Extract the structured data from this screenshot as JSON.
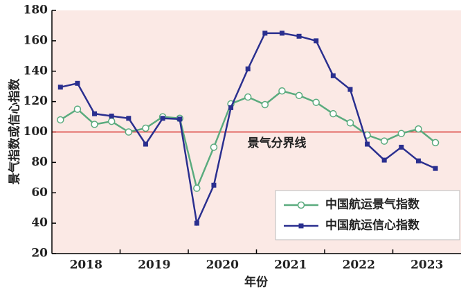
{
  "chart_data": {
    "type": "line",
    "y_label": "景气指数或信心指数",
    "x_label": "年份",
    "annotation": "景气分界线",
    "reference_line": 100,
    "reference_color": "#d9302c",
    "categories": [
      null,
      null,
      null,
      null,
      null,
      null,
      null,
      null,
      null,
      null,
      null,
      null,
      null,
      null,
      null,
      null,
      null,
      null,
      null,
      null,
      null,
      null,
      null
    ],
    "year_labels": [
      "2018",
      "2019",
      "2020",
      "2021",
      "2022",
      "2023"
    ],
    "series": [
      {
        "name": "中国航运景气指数",
        "color": "#5aab7e",
        "marker": "circle",
        "values": [
          108,
          115,
          105,
          107,
          100,
          102.5,
          110,
          109,
          63,
          90,
          118.5,
          123,
          118,
          127,
          124,
          119.5,
          112,
          106,
          98,
          94,
          99,
          102,
          93
        ]
      },
      {
        "name": "中国航运信心指数",
        "color": "#2a2f8f",
        "marker": "square",
        "values": [
          129.5,
          132,
          112,
          110.5,
          109,
          92,
          109,
          108.5,
          40,
          65,
          116,
          141.5,
          165,
          165,
          163,
          160,
          137,
          128,
          92,
          81.5,
          90,
          81,
          76
        ]
      }
    ],
    "ylim": [
      20,
      180
    ],
    "yticks": [
      20,
      40,
      60,
      80,
      100,
      120,
      140,
      160,
      180
    ],
    "legend": "lower right",
    "background": "#fbe9e5"
  }
}
